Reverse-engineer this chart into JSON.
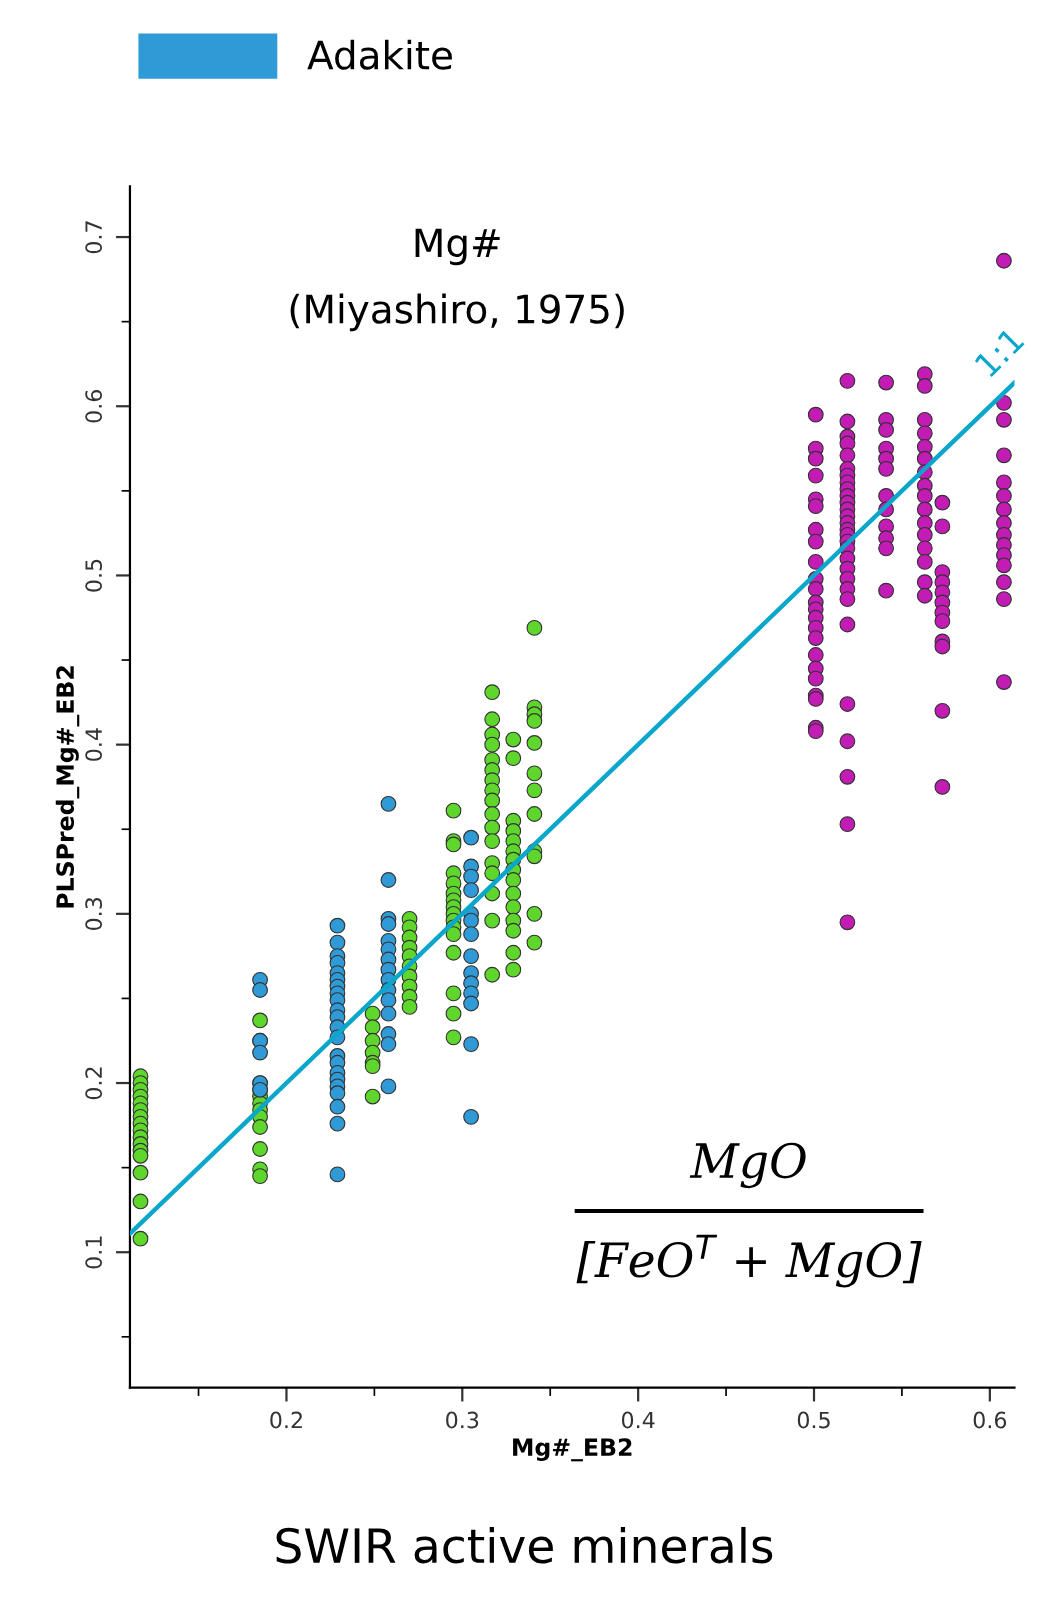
{
  "chart_data": {
    "type": "scatter",
    "title": "SWIR active minerals",
    "xlabel": "Mg#_EB2",
    "ylabel": "PLSPred_Mg#_EB2",
    "xlim": [
      0.111,
      0.614
    ],
    "ylim": [
      0.02,
      0.73
    ],
    "xticks": [
      {
        "value": 0.15,
        "label": null
      },
      0.2,
      {
        "value": 0.25,
        "label": null
      },
      0.3,
      {
        "value": 0.35,
        "label": null
      },
      0.4,
      {
        "value": 0.45,
        "label": null
      },
      0.5,
      {
        "value": 0.55,
        "label": null
      },
      0.6
    ],
    "yticks": [
      {
        "value": 0.05,
        "label": null
      },
      0.1,
      {
        "value": 0.15,
        "label": null
      },
      0.2,
      {
        "value": 0.25,
        "label": null
      },
      0.3,
      {
        "value": 0.35,
        "label": null
      },
      0.4,
      {
        "value": 0.45,
        "label": null
      },
      0.5,
      {
        "value": 0.55,
        "label": null
      },
      0.6,
      {
        "value": 0.65,
        "label": null
      },
      0.7
    ],
    "grid": false,
    "legend": "top left",
    "marker": "circle",
    "annotations": [
      "Mg#",
      "(Miyashiro, 1975)",
      "MgO",
      "[FeO$^{T}$ + MgO]",
      "1:1"
    ],
    "series": [
      {
        "color": "#5fd62c",
        "x": [
          0.117,
          0.117,
          0.117,
          0.117,
          0.117,
          0.117,
          0.117,
          0.117,
          0.117,
          0.117,
          0.117,
          0.117,
          0.117,
          0.117,
          0.117,
          0.117,
          0.185,
          0.185,
          0.185,
          0.185,
          0.185,
          0.185,
          0.185,
          0.185,
          0.185,
          0.185,
          0.185,
          0.185,
          0.249,
          0.249,
          0.249,
          0.249,
          0.249,
          0.249,
          0.249,
          0.27,
          0.27,
          0.27,
          0.27,
          0.27,
          0.27,
          0.27,
          0.27,
          0.27,
          0.27,
          0.295,
          0.295,
          0.295,
          0.295,
          0.295,
          0.295,
          0.295,
          0.295,
          0.295,
          0.295,
          0.295,
          0.295,
          0.295,
          0.295,
          0.295,
          0.295,
          0.317,
          0.317,
          0.317,
          0.317,
          0.317,
          0.317,
          0.317,
          0.317,
          0.317,
          0.317,
          0.317,
          0.317,
          0.317,
          0.317,
          0.317,
          0.317,
          0.317,
          0.329,
          0.329,
          0.329,
          0.329,
          0.329,
          0.329,
          0.329,
          0.329,
          0.329,
          0.329,
          0.329,
          0.329,
          0.329,
          0.329,
          0.329,
          0.341,
          0.341,
          0.341,
          0.341,
          0.341,
          0.341,
          0.341,
          0.341,
          0.341,
          0.341,
          0.341,
          0.341
        ],
        "values": [
          0.204,
          0.2,
          0.196,
          0.192,
          0.188,
          0.184,
          0.18,
          0.176,
          0.172,
          0.168,
          0.164,
          0.16,
          0.157,
          0.147,
          0.13,
          0.108,
          0.237,
          0.225,
          0.2,
          0.196,
          0.192,
          0.188,
          0.184,
          0.18,
          0.174,
          0.161,
          0.149,
          0.145,
          0.241,
          0.233,
          0.225,
          0.218,
          0.212,
          0.21,
          0.192,
          0.297,
          0.292,
          0.286,
          0.28,
          0.275,
          0.269,
          0.263,
          0.257,
          0.251,
          0.245,
          0.361,
          0.343,
          0.341,
          0.324,
          0.318,
          0.312,
          0.308,
          0.304,
          0.3,
          0.296,
          0.292,
          0.288,
          0.277,
          0.253,
          0.241,
          0.227,
          0.431,
          0.415,
          0.406,
          0.4,
          0.391,
          0.385,
          0.379,
          0.373,
          0.367,
          0.359,
          0.351,
          0.343,
          0.33,
          0.324,
          0.312,
          0.296,
          0.264,
          0.403,
          0.392,
          0.355,
          0.349,
          0.343,
          0.337,
          0.332,
          0.326,
          0.32,
          0.312,
          0.304,
          0.296,
          0.29,
          0.277,
          0.267,
          0.469,
          0.422,
          0.418,
          0.414,
          0.401,
          0.383,
          0.373,
          0.359,
          0.337,
          0.334,
          0.283,
          0.3
        ]
      },
      {
        "name": "Adakite",
        "color": "#2f9ad6",
        "x": [
          0.185,
          0.185,
          0.185,
          0.185,
          0.185,
          0.185,
          0.229,
          0.229,
          0.229,
          0.229,
          0.229,
          0.229,
          0.229,
          0.229,
          0.229,
          0.229,
          0.229,
          0.229,
          0.229,
          0.229,
          0.229,
          0.229,
          0.229,
          0.229,
          0.229,
          0.229,
          0.229,
          0.229,
          0.258,
          0.258,
          0.258,
          0.258,
          0.258,
          0.258,
          0.258,
          0.258,
          0.258,
          0.258,
          0.258,
          0.258,
          0.258,
          0.258,
          0.258,
          0.305,
          0.305,
          0.305,
          0.305,
          0.305,
          0.305,
          0.305,
          0.305,
          0.305,
          0.305,
          0.305,
          0.305,
          0.305,
          0.305
        ],
        "values": [
          0.261,
          0.255,
          0.225,
          0.218,
          0.2,
          0.196,
          0.293,
          0.283,
          0.275,
          0.271,
          0.265,
          0.261,
          0.257,
          0.253,
          0.249,
          0.243,
          0.239,
          0.233,
          0.227,
          0.216,
          0.212,
          0.206,
          0.202,
          0.198,
          0.194,
          0.186,
          0.176,
          0.146,
          0.365,
          0.32,
          0.297,
          0.294,
          0.284,
          0.279,
          0.273,
          0.267,
          0.261,
          0.255,
          0.249,
          0.241,
          0.229,
          0.223,
          0.198,
          0.345,
          0.328,
          0.322,
          0.314,
          0.3,
          0.296,
          0.288,
          0.275,
          0.265,
          0.259,
          0.253,
          0.247,
          0.223,
          0.18
        ]
      },
      {
        "color": "#c21cb4",
        "x": [
          0.501,
          0.501,
          0.501,
          0.501,
          0.501,
          0.501,
          0.501,
          0.501,
          0.501,
          0.501,
          0.501,
          0.501,
          0.501,
          0.501,
          0.501,
          0.501,
          0.501,
          0.501,
          0.501,
          0.501,
          0.501,
          0.501,
          0.501,
          0.519,
          0.519,
          0.519,
          0.519,
          0.519,
          0.519,
          0.519,
          0.519,
          0.519,
          0.519,
          0.519,
          0.519,
          0.519,
          0.519,
          0.519,
          0.519,
          0.519,
          0.519,
          0.519,
          0.519,
          0.519,
          0.519,
          0.519,
          0.519,
          0.519,
          0.519,
          0.519,
          0.519,
          0.519,
          0.541,
          0.541,
          0.541,
          0.541,
          0.541,
          0.541,
          0.541,
          0.541,
          0.541,
          0.541,
          0.541,
          0.541,
          0.563,
          0.563,
          0.563,
          0.563,
          0.563,
          0.563,
          0.563,
          0.563,
          0.563,
          0.563,
          0.563,
          0.563,
          0.563,
          0.563,
          0.563,
          0.563,
          0.573,
          0.573,
          0.573,
          0.573,
          0.573,
          0.573,
          0.573,
          0.573,
          0.573,
          0.573,
          0.573,
          0.573,
          0.608,
          0.608,
          0.608,
          0.608,
          0.608,
          0.608,
          0.608,
          0.608,
          0.608,
          0.608,
          0.608,
          0.608,
          0.608,
          0.608,
          0.608
        ],
        "values": [
          0.595,
          0.575,
          0.569,
          0.559,
          0.545,
          0.541,
          0.527,
          0.52,
          0.508,
          0.498,
          0.492,
          0.484,
          0.48,
          0.475,
          0.469,
          0.463,
          0.453,
          0.445,
          0.439,
          0.429,
          0.427,
          0.41,
          0.408,
          0.615,
          0.591,
          0.582,
          0.578,
          0.571,
          0.563,
          0.559,
          0.555,
          0.551,
          0.547,
          0.543,
          0.539,
          0.535,
          0.531,
          0.527,
          0.524,
          0.52,
          0.516,
          0.51,
          0.504,
          0.498,
          0.492,
          0.486,
          0.471,
          0.424,
          0.402,
          0.381,
          0.353,
          0.295,
          0.614,
          0.592,
          0.586,
          0.575,
          0.569,
          0.563,
          0.547,
          0.539,
          0.529,
          0.522,
          0.516,
          0.491,
          0.619,
          0.612,
          0.592,
          0.584,
          0.576,
          0.569,
          0.561,
          0.553,
          0.547,
          0.539,
          0.531,
          0.524,
          0.516,
          0.508,
          0.496,
          0.488,
          0.543,
          0.529,
          0.502,
          0.496,
          0.49,
          0.484,
          0.478,
          0.473,
          0.461,
          0.458,
          0.42,
          0.375,
          0.686,
          0.602,
          0.592,
          0.571,
          0.555,
          0.547,
          0.539,
          0.531,
          0.524,
          0.518,
          0.512,
          0.506,
          0.496,
          0.486,
          0.437
        ]
      },
      {
        "type": "line",
        "marker": "none",
        "color": "#0aa6cc",
        "x": [
          0.111,
          0.614
        ],
        "values": [
          0.111,
          0.614
        ]
      }
    ]
  }
}
